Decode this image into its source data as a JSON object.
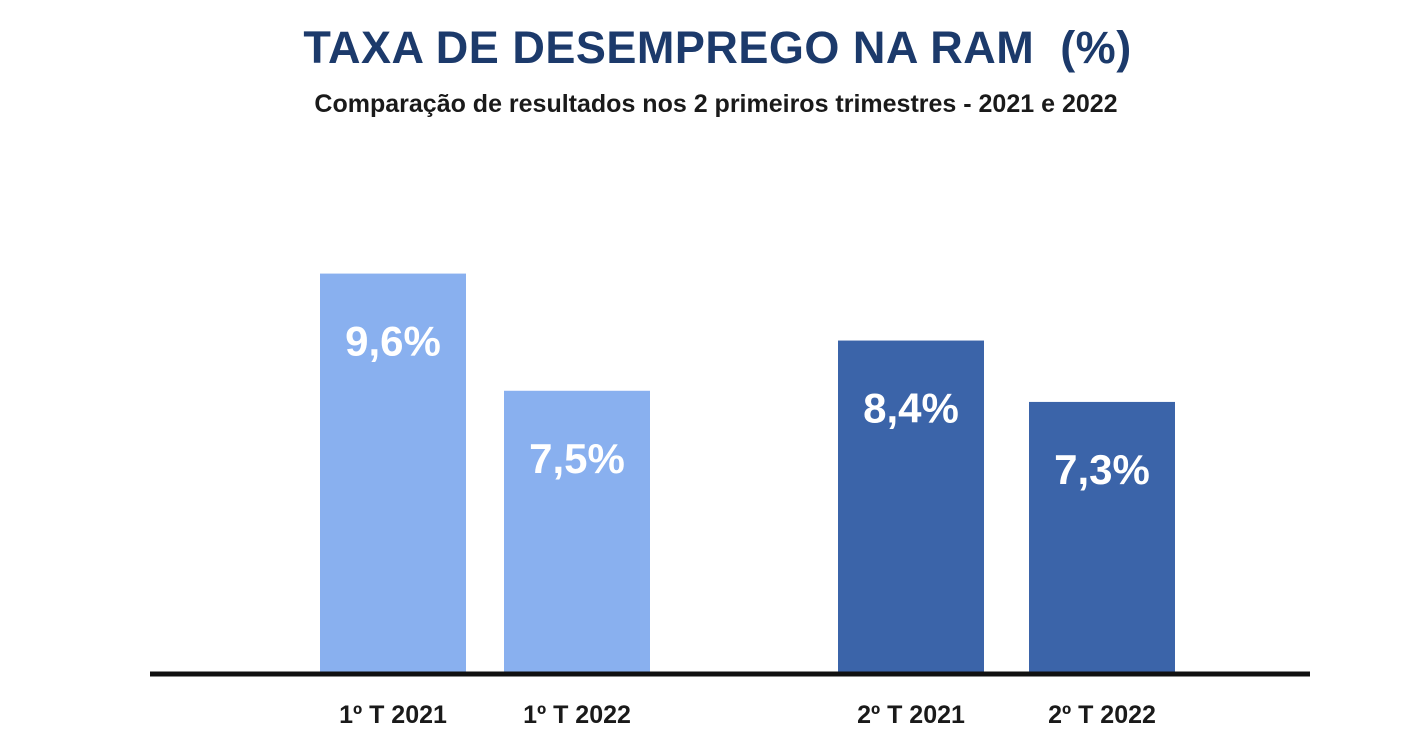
{
  "chart_data": {
    "type": "bar",
    "title": "TAXA DE DESEMPREGO NA RAM  (%)",
    "subtitle": "Comparação de resultados nos 2 primeiros trimestres - 2021 e 2022",
    "categories": [
      "1º T 2021",
      "1º T 2022",
      "2º T 2021",
      "2º T 2022"
    ],
    "values": [
      9.6,
      7.5,
      8.4,
      7.3
    ],
    "data_labels": [
      "9,6%",
      "7,5%",
      "8,4%",
      "7,3%"
    ],
    "colors": [
      "#89b0ef",
      "#89b0ef",
      "#3b64a9",
      "#3b64a9"
    ],
    "label_color": "#ffffff",
    "axis_color": "#111111",
    "grid": false,
    "legend": "none",
    "xlabel": "",
    "ylabel": ""
  }
}
